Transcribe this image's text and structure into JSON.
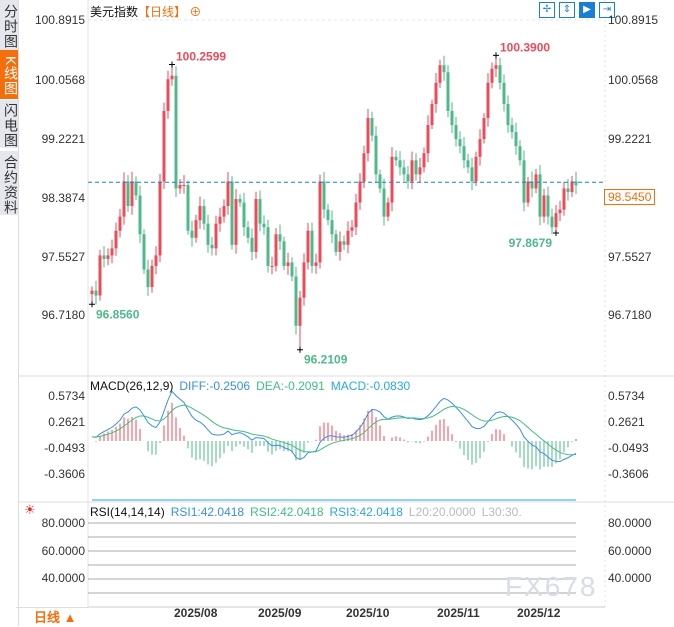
{
  "sidebar": {
    "tabs": [
      {
        "label": "分时图"
      },
      {
        "label": "K线图",
        "active": true
      },
      {
        "label": "闪电图"
      },
      {
        "label": "合约资料"
      }
    ]
  },
  "header": {
    "instrument": "美元指数",
    "timeframe": "【日线】",
    "add_icon": "circle-plus-icon"
  },
  "toolbar": {
    "icons": [
      "crosshair-icon",
      "fit-range-icon",
      "play-forward-icon",
      "exit-right-icon"
    ]
  },
  "colors": {
    "up": "#ee4b5a",
    "down": "#4fb98a",
    "price_line": "#1a7fd0",
    "accent": "#f36f0d",
    "diff": "#3a8ee6",
    "dea": "#3fbf7f",
    "rsi": "#2aa7e0"
  },
  "main": {
    "y_ticks": [
      "100.8915",
      "100.0568",
      "99.2221",
      "98.3874",
      "97.5527",
      "96.7180"
    ],
    "current_price": "98.5450",
    "annotations": [
      {
        "label": "100.2599",
        "type": "high",
        "index": 20
      },
      {
        "label": "96.2109",
        "type": "low",
        "index": 52
      },
      {
        "label": "100.3900",
        "type": "high",
        "index": 101
      },
      {
        "label": "97.8679",
        "type": "low",
        "index": 116
      },
      {
        "label": "96.8560",
        "type": "low",
        "index": 0
      }
    ]
  },
  "macd": {
    "title": "MACD(26,12,9)",
    "diff": "DIFF:-0.2506",
    "dea": "DEA:-0.2091",
    "macd": "MACD:-0.0830",
    "y_ticks": [
      "0.5734",
      "0.2621",
      "-0.0493",
      "-0.3606"
    ]
  },
  "rsi": {
    "title": "RSI(14,14,14)",
    "rsi1": "RSI1:42.0418",
    "rsi2": "RSI2:42.0418",
    "rsi3": "RSI3:42.0418",
    "l20": "L20:20.0000",
    "l30": "L30:30.",
    "y_ticks": [
      "80.0000",
      "60.0000",
      "40.0000"
    ],
    "settings_icon": "sun-settings-icon"
  },
  "x_axis": {
    "labels": [
      "2025/08",
      "2025/09",
      "2025/10",
      "2025/11",
      "2025/12"
    ]
  },
  "footer": {
    "timeframe_label": "日线 ▲"
  },
  "watermark": "FX678",
  "chart_data": {
    "type": "candlestick",
    "y_range": [
      96.718,
      100.8915
    ],
    "closes": [
      97.05,
      96.98,
      97.55,
      97.5,
      97.55,
      97.65,
      97.9,
      98.1,
      98.6,
      98.25,
      98.6,
      98.4,
      97.85,
      97.35,
      97.1,
      97.4,
      97.55,
      98.6,
      99.6,
      100.05,
      100.1,
      98.5,
      98.55,
      98.55,
      97.9,
      97.8,
      98.05,
      98.25,
      98.0,
      97.7,
      97.65,
      98.0,
      98.1,
      98.25,
      98.6,
      97.7,
      98.35,
      98.3,
      97.95,
      97.8,
      97.6,
      98.35,
      98.0,
      97.95,
      97.4,
      97.4,
      97.85,
      97.75,
      97.4,
      97.45,
      97.25,
      96.55,
      96.95,
      97.45,
      97.9,
      97.4,
      97.45,
      98.6,
      98.2,
      98.05,
      97.85,
      97.6,
      97.75,
      97.7,
      97.9,
      97.95,
      98.3,
      98.6,
      99.0,
      99.5,
      99.25,
      98.7,
      98.5,
      98.1,
      98.3,
      98.95,
      98.9,
      98.8,
      98.7,
      98.6,
      98.9,
      98.7,
      98.8,
      99.0,
      99.4,
      99.7,
      100.0,
      100.25,
      100.15,
      99.6,
      99.4,
      99.2,
      99.1,
      98.9,
      98.8,
      98.6,
      98.95,
      99.2,
      99.5,
      100.0,
      100.2,
      100.25,
      100.0,
      99.7,
      99.4,
      99.3,
      99.1,
      98.9,
      98.3,
      98.6,
      98.5,
      98.7,
      98.1,
      98.4,
      98.1,
      97.95,
      98.15,
      98.2,
      98.5,
      98.45,
      98.6,
      98.545
    ]
  }
}
